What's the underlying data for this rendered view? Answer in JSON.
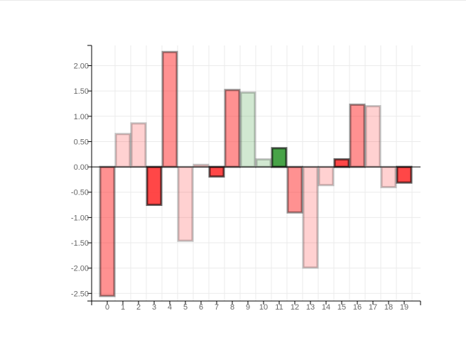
{
  "chart_data": {
    "type": "bar",
    "title": "",
    "xlabel": "",
    "ylabel": "",
    "categories": [
      "0",
      "1",
      "2",
      "3",
      "4",
      "5",
      "6",
      "7",
      "8",
      "9",
      "10",
      "11",
      "12",
      "13",
      "14",
      "15",
      "16",
      "17",
      "18",
      "19"
    ],
    "values": [
      -2.55,
      0.65,
      0.86,
      -0.75,
      2.27,
      -1.46,
      0.04,
      -0.19,
      1.52,
      1.47,
      0.15,
      0.37,
      -0.9,
      -1.99,
      -0.36,
      0.15,
      1.23,
      1.2,
      -0.4,
      -0.31
    ],
    "bar_colors": [
      "#ff3333",
      "#ff3333",
      "#ff3333",
      "#ff3333",
      "#ff3333",
      "#ff3333",
      "#ff3333",
      "#ff3333",
      "#ff3333",
      "#339933",
      "#339933",
      "#339933",
      "#ff3333",
      "#ff3333",
      "#ff3333",
      "#ff3333",
      "#ff3333",
      "#ff3333",
      "#ff3333",
      "#ff3333"
    ],
    "bar_opacity": [
      0.6,
      0.25,
      0.25,
      1.0,
      0.6,
      0.25,
      0.25,
      1.0,
      0.6,
      0.25,
      0.25,
      1.0,
      0.6,
      0.25,
      0.25,
      1.0,
      0.6,
      0.25,
      0.25,
      1.0
    ],
    "ylim": [
      -2.65,
      2.4
    ],
    "yticks": [
      -2.5,
      -2.0,
      -1.5,
      -1.0,
      -0.5,
      0.0,
      0.5,
      1.0,
      1.5,
      2.0
    ],
    "ytick_labels": [
      "-2.50",
      "-2.00",
      "-1.50",
      "-1.00",
      "-0.50",
      "0.00",
      "0.50",
      "1.00",
      "1.50",
      "2.00"
    ],
    "grid": true,
    "colors": {
      "red": "#ff3333",
      "green": "#339933",
      "grid": "#ebebeb",
      "axis": "#000000",
      "text": "#666666"
    }
  }
}
